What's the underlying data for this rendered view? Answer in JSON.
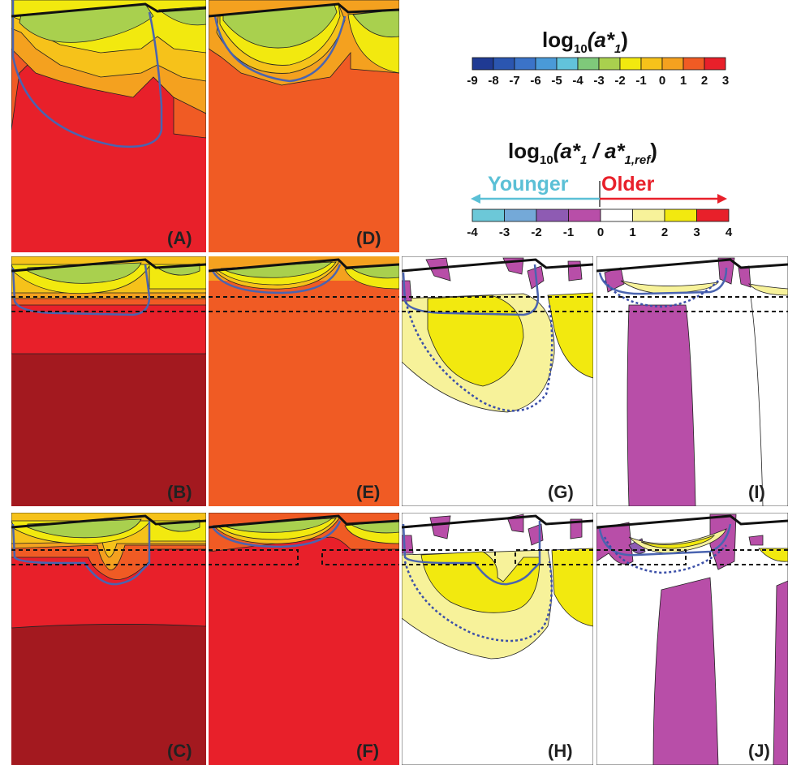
{
  "colors": {
    "c_m9": "#1f3a93",
    "c_m8": "#2b56b0",
    "c_m7": "#3b73c8",
    "c_m6": "#4a9ad8",
    "c_m5": "#62c3db",
    "c_m4": "#7fc97a",
    "c_m3": "#a9d04e",
    "c_m2": "#f2e90f",
    "c_m1": "#f6c21a",
    "c_0": "#f4a11f",
    "c_1": "#f05b24",
    "c_2": "#e8202a",
    "c_3": "#a3191f",
    "r_m4": "#6cc8d8",
    "r_m3": "#74a9d8",
    "r_m2": "#8e5bb3",
    "r_m1": "#b84ea8",
    "r_0": "#ffffff",
    "r_1": "#f7f29a",
    "r_2": "#f2e90f",
    "r_3": "#e8202a",
    "blue_line": "#4a64b0",
    "younger": "#5bc0d6",
    "older": "#e8202a"
  },
  "legend_top": {
    "title_main": "log",
    "title_sub": "10",
    "title_arg": "(a*",
    "title_arg_sub": "1",
    "title_close": ")",
    "ticks": [
      "-9",
      "-8",
      "-7",
      "-6",
      "-5",
      "-4",
      "-3",
      "-2",
      "-1",
      "0",
      "1",
      "2",
      "3"
    ]
  },
  "legend_bottom": {
    "title_main": "log",
    "title_sub": "10",
    "title_arg": "(a*",
    "title_arg_sub": "1",
    "title_mid": " / a*",
    "title_ref_sub": "1,ref",
    "title_close": ")",
    "younger": "Younger",
    "older": "Older",
    "ticks": [
      "-4",
      "-3",
      "-2",
      "-1",
      "0",
      "1",
      "2",
      "3",
      "4"
    ]
  },
  "panels": {
    "A": "(A)",
    "B": "(B)",
    "C": "(C)",
    "D": "(D)",
    "E": "(E)",
    "F": "(F)",
    "G": "(G)",
    "H": "(H)",
    "I": "(I)",
    "J": "(J)"
  }
}
